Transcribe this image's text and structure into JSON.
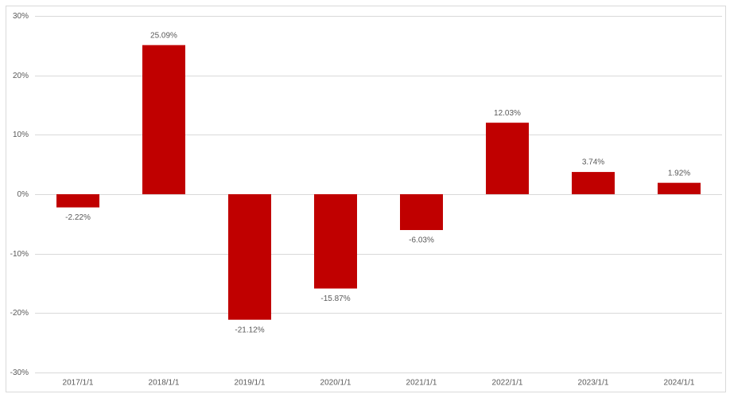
{
  "chart_data": {
    "type": "bar",
    "categories": [
      "2017/1/1",
      "2018/1/1",
      "2019/1/1",
      "2020/1/1",
      "2021/1/1",
      "2022/1/1",
      "2023/1/1",
      "2024/1/1"
    ],
    "values": [
      -2.22,
      25.09,
      -21.12,
      -15.87,
      -6.03,
      12.03,
      3.74,
      1.92
    ],
    "value_labels": [
      "-2.22%",
      "25.09%",
      "-21.12%",
      "-15.87%",
      "-6.03%",
      "12.03%",
      "3.74%",
      "1.92%"
    ],
    "color": "#c00000",
    "ylim": [
      -30,
      30
    ],
    "yticks": [
      {
        "value": -30,
        "label": "-30%"
      },
      {
        "value": -20,
        "label": "-20%"
      },
      {
        "value": -10,
        "label": "-10%"
      },
      {
        "value": 0,
        "label": "0%"
      },
      {
        "value": 10,
        "label": "10%"
      },
      {
        "value": 20,
        "label": "20%"
      },
      {
        "value": 30,
        "label": "30%"
      }
    ],
    "grid": true
  }
}
